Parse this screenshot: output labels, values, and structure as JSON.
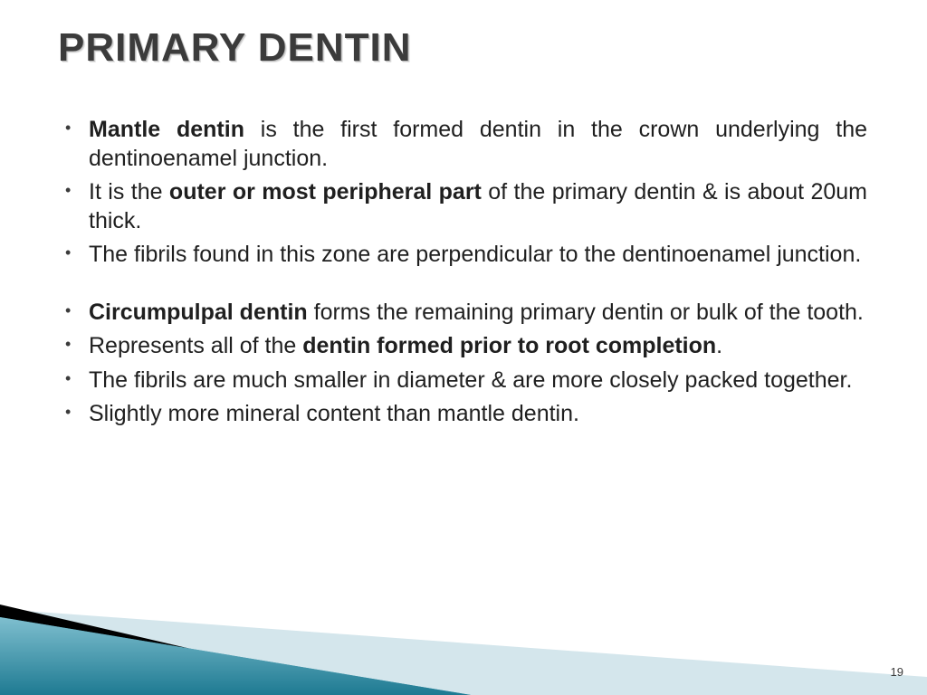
{
  "title": "PRIMARY DENTIN",
  "bullets": [
    {
      "segments": [
        {
          "t": "Mantle dentin",
          "b": true
        },
        {
          "t": " is the first formed dentin in the crown underlying the dentinoenamel junction.",
          "b": false
        }
      ]
    },
    {
      "segments": [
        {
          "t": "It is the ",
          "b": false
        },
        {
          "t": "outer or most peripheral part",
          "b": true
        },
        {
          "t": " of the primary dentin & is about 20um thick.",
          "b": false
        }
      ]
    },
    {
      "segments": [
        {
          "t": "The fibrils found in this zone are perpendicular to the dentinoenamel junction.",
          "b": false
        }
      ]
    },
    {
      "gap": true
    },
    {
      "segments": [
        {
          "t": "Circumpulpal dentin",
          "b": true
        },
        {
          "t": " forms the remaining primary dentin or bulk of the tooth.",
          "b": false
        }
      ]
    },
    {
      "segments": [
        {
          "t": "Represents all of the ",
          "b": false
        },
        {
          "t": "dentin formed prior to root completion",
          "b": true
        },
        {
          "t": ".",
          "b": false
        }
      ]
    },
    {
      "segments": [
        {
          "t": "The fibrils are much smaller in diameter & are more closely packed together.",
          "b": false
        }
      ]
    },
    {
      "segments": [
        {
          "t": "Slightly more mineral content than mantle dentin.",
          "b": false
        }
      ]
    }
  ],
  "page_number": "19",
  "colors": {
    "title": "#3b3b3b",
    "text": "#1f1f1f",
    "bg": "#ffffff",
    "deco_teal": "#2b8ea6",
    "deco_teal_light": "#7fbfcf",
    "deco_black": "#000000",
    "deco_pale": "#d4e6ec"
  },
  "fonts": {
    "title_size": 44,
    "body_size": 25
  }
}
